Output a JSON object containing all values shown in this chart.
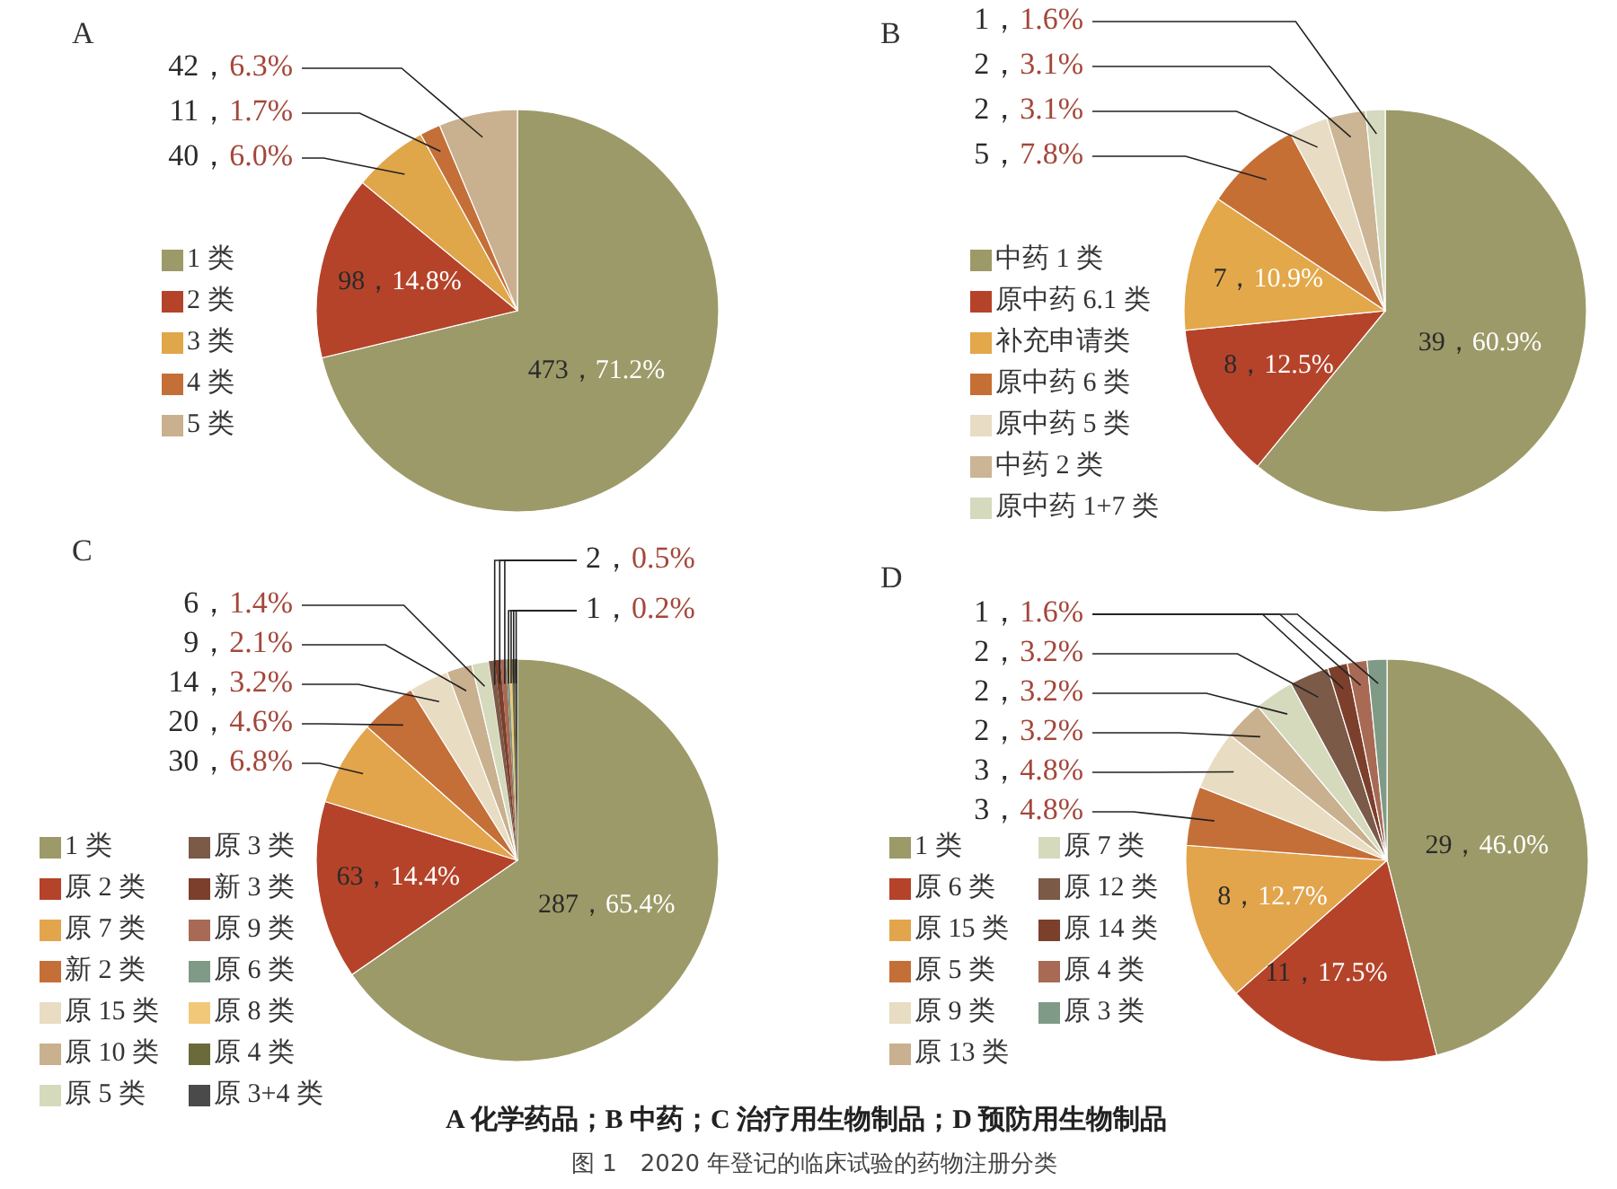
{
  "chart_data": [
    {
      "type": "pie",
      "title": "A",
      "legend": "left",
      "categories": [
        "1 类",
        "2 类",
        "3 类",
        "4 类",
        "5 类"
      ],
      "values": [
        473,
        98,
        40,
        11,
        42
      ],
      "colors": [
        "#9c9a68",
        "#b5432a",
        "#e0a64a",
        "#c46f38",
        "#c9b08e"
      ],
      "value_labels": [
        "473，71.2%",
        "98，14.8%",
        "40，6.0%",
        "11，1.7%",
        "42，6.3%"
      ]
    },
    {
      "type": "pie",
      "title": "B",
      "legend": "left",
      "categories": [
        "中药 1 类",
        "原中药 6.1 类",
        "补充申请类",
        "原中药 6 类",
        "原中药 5 类",
        "中药 2 类",
        "原中药 1+7 类"
      ],
      "values": [
        39,
        8,
        7,
        5,
        2,
        2,
        1
      ],
      "colors": [
        "#9c9a68",
        "#b5432a",
        "#e3a84a",
        "#c66f35",
        "#e8dcc4",
        "#cbb594",
        "#d5d9bd"
      ],
      "value_labels": [
        "39，60.9%",
        "8，12.5%",
        "7，10.9%",
        "5，7.8%",
        "2，3.1%",
        "2，3.1%",
        "1，1.6%"
      ]
    },
    {
      "type": "pie",
      "title": "C",
      "legend": "left",
      "categories": [
        "1 类",
        "原 2 类",
        "原 7 类",
        "新 2 类",
        "原 15 类",
        "原 10 类",
        "原 5 类",
        "原 3 类",
        "新 3 类",
        "原 9 类",
        "原 6 类",
        "原 8 类",
        "原 4 类",
        "原 3+4 类"
      ],
      "values": [
        287,
        63,
        30,
        20,
        14,
        9,
        6,
        2,
        2,
        2,
        1,
        1,
        1,
        1
      ],
      "colors": [
        "#9c9a68",
        "#b5432a",
        "#e2a54c",
        "#c46f38",
        "#e8dcc2",
        "#c9b08e",
        "#d6dabd",
        "#7b5a48",
        "#7c3f2c",
        "#a96a55",
        "#7f9a86",
        "#f1c87a",
        "#6b6a3a",
        "#4a4a4a"
      ],
      "value_labels": [
        "287，65.4%",
        "63，14.4%",
        "30，6.8%",
        "20，4.6%",
        "14，3.2%",
        "9，2.1%",
        "6，1.4%",
        "2，0.5%",
        null,
        null,
        "1，0.2%",
        null,
        null,
        null
      ]
    },
    {
      "type": "pie",
      "title": "D",
      "legend": "left",
      "categories": [
        "1 类",
        "原 6 类",
        "原 15 类",
        "原 5 类",
        "原 9 类",
        "原 13 类",
        "原 7 类",
        "原 12 类",
        "原 14 类",
        "原 4 类",
        "原 3 类"
      ],
      "values": [
        29,
        11,
        8,
        3,
        3,
        2,
        2,
        2,
        1,
        1,
        1
      ],
      "colors": [
        "#9c9a68",
        "#b5432a",
        "#e2a54c",
        "#c46f38",
        "#e8dcc2",
        "#c9b08e",
        "#d6dabd",
        "#7b5a48",
        "#7c3f2c",
        "#a96a55",
        "#7f9a86"
      ],
      "value_labels": [
        "29，46.0%",
        "11，17.5%",
        "8，12.7%",
        "3，4.8%",
        "3，4.8%",
        "2，3.2%",
        "2，3.2%",
        "2，3.2%",
        "1，1.6%",
        null,
        null
      ],
      "annotations": [
        "A 化学药品；B 中药；C 治疗用生物制品；D 预防用生物制品",
        "图 1　2020 年登记的临床试验的药物注册分类"
      ]
    }
  ]
}
